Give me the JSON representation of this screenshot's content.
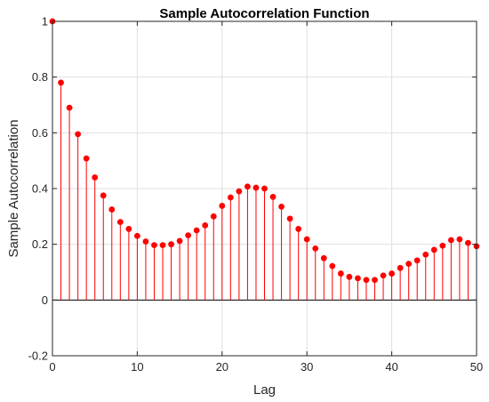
{
  "chart_data": {
    "type": "stem",
    "title": "Sample Autocorrelation Function",
    "xlabel": "Lag",
    "ylabel": "Sample Autocorrelation",
    "xlim": [
      0,
      50
    ],
    "ylim": [
      -0.2,
      1
    ],
    "xticks": [
      0,
      10,
      20,
      30,
      40,
      50
    ],
    "yticks": [
      -0.2,
      0,
      0.2,
      0.4,
      0.6,
      0.8,
      1
    ],
    "ytick_labels": [
      "-0.2",
      "0",
      "0.2",
      "0.4",
      "0.6",
      "0.8",
      "1"
    ],
    "grid": true,
    "stem_color": "#ff0000",
    "x": [
      0,
      1,
      2,
      3,
      4,
      5,
      6,
      7,
      8,
      9,
      10,
      11,
      12,
      13,
      14,
      15,
      16,
      17,
      18,
      19,
      20,
      21,
      22,
      23,
      24,
      25,
      26,
      27,
      28,
      29,
      30,
      31,
      32,
      33,
      34,
      35,
      36,
      37,
      38,
      39,
      40,
      41,
      42,
      43,
      44,
      45,
      46,
      47,
      48,
      49,
      50
    ],
    "values": [
      1.0,
      0.78,
      0.69,
      0.595,
      0.508,
      0.44,
      0.375,
      0.325,
      0.28,
      0.255,
      0.23,
      0.21,
      0.197,
      0.197,
      0.2,
      0.212,
      0.232,
      0.25,
      0.268,
      0.3,
      0.338,
      0.368,
      0.39,
      0.407,
      0.403,
      0.4,
      0.37,
      0.335,
      0.292,
      0.255,
      0.218,
      0.185,
      0.15,
      0.122,
      0.095,
      0.083,
      0.078,
      0.072,
      0.072,
      0.088,
      0.095,
      0.115,
      0.13,
      0.142,
      0.163,
      0.18,
      0.195,
      0.215,
      0.218,
      0.205,
      0.193
    ]
  }
}
